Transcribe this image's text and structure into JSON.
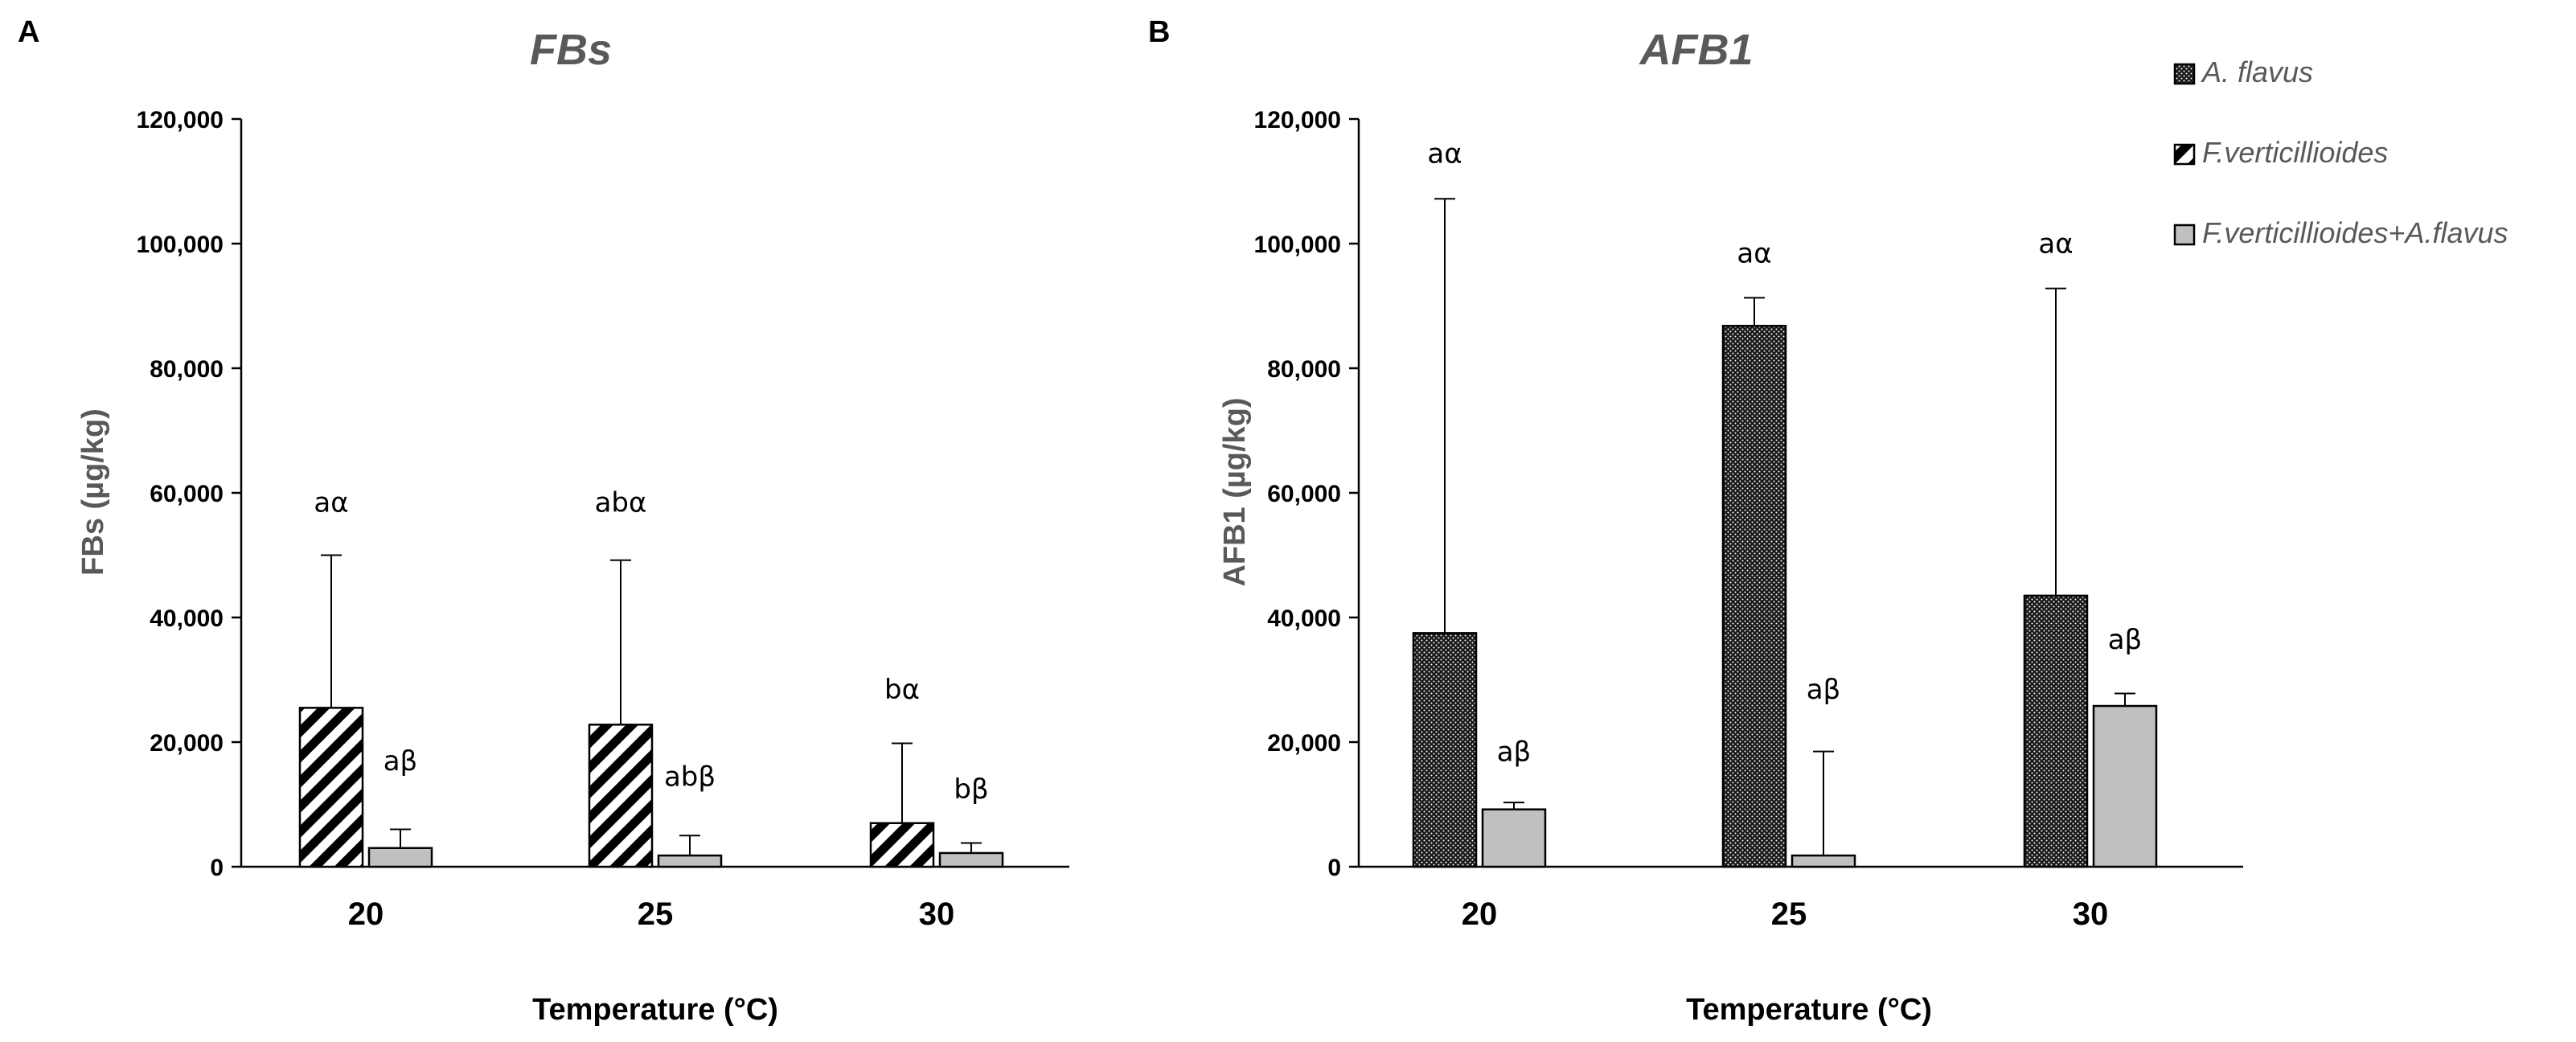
{
  "chart_data": [
    {
      "type": "bar",
      "panel": "A",
      "title": "FBs",
      "xlabel": "Temperature (°C)",
      "ylabel": "FBs (µg/kg)",
      "ylim": [
        0,
        120000
      ],
      "yticks": [
        0,
        20000,
        40000,
        60000,
        80000,
        100000,
        120000
      ],
      "ytick_labels": [
        "0",
        "20,000",
        "40,000",
        "60,000",
        "80,000",
        "100,000",
        "120,000"
      ],
      "categories": [
        "20",
        "25",
        "30"
      ],
      "series": [
        {
          "name": "F.verticillioides",
          "pattern": "diagonal-stripes",
          "values": [
            25500,
            22800,
            7000
          ],
          "error_upper": [
            50000,
            49200,
            19800
          ],
          "labels": [
            "aα",
            "abα",
            "bα"
          ],
          "label_y": [
            57000,
            57000,
            27000
          ]
        },
        {
          "name": "F.verticillioides+A.flavus",
          "pattern": "solid-gray",
          "values": [
            3000,
            1800,
            2200
          ],
          "error_upper": [
            6000,
            5000,
            3800
          ],
          "labels": [
            "aβ",
            "abβ",
            "bβ"
          ],
          "label_y": [
            15500,
            13000,
            11000
          ]
        }
      ]
    },
    {
      "type": "bar",
      "panel": "B",
      "title": "AFB1",
      "xlabel": "Temperature (°C)",
      "ylabel": "AFB1 (µg/kg)",
      "ylim": [
        0,
        120000
      ],
      "yticks": [
        0,
        20000,
        40000,
        60000,
        80000,
        100000,
        120000
      ],
      "ytick_labels": [
        "0",
        "20,000",
        "40,000",
        "60,000",
        "80,000",
        "100,000",
        "120,000"
      ],
      "categories": [
        "20",
        "25",
        "30"
      ],
      "series": [
        {
          "name": "A. flavus",
          "pattern": "dotted-dark",
          "values": [
            37500,
            86800,
            43500
          ],
          "error_upper": [
            107200,
            91300,
            92800
          ],
          "labels": [
            "aα",
            "aα",
            "aα"
          ],
          "label_y": [
            113000,
            97000,
            98500
          ]
        },
        {
          "name": "F.verticillioides+A.flavus",
          "pattern": "solid-gray",
          "values": [
            9200,
            1800,
            25800
          ],
          "error_upper": [
            10300,
            18500,
            27800
          ],
          "labels": [
            "aβ",
            "aβ",
            "aβ"
          ],
          "label_y": [
            17000,
            27000,
            35000
          ]
        }
      ]
    }
  ],
  "legend": {
    "placement": "top-right",
    "entries": [
      {
        "label": "A. flavus",
        "pattern": "dotted-dark"
      },
      {
        "label": "F.verticillioides",
        "pattern": "diagonal-stripes"
      },
      {
        "label": "F.verticillioides+A.flavus",
        "pattern": "solid-gray"
      }
    ]
  },
  "colors": {
    "gray_bar": "#c0c0c0",
    "dark_bar": "#262626",
    "stripe": "#000000",
    "axis": "#000000",
    "title_gray": "#595959"
  }
}
